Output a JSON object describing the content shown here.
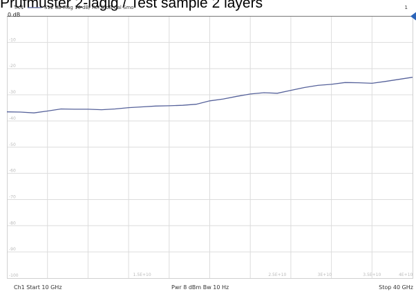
{
  "title": "Prüfmuster 2-lagig / Test sample 2 layers",
  "trace_header": {
    "trace_name": "Trc1",
    "measurement": "S12  dB Mag  10 dB/ Ref 0 dB  Cal Smo",
    "channel_number": "1"
  },
  "ref_label": "0 dB",
  "footer": {
    "start": "Ch1  Start  10 GHz",
    "center": "Pwr  8 dBm  Bw  10 Hz",
    "stop": "Stop  40 GHz"
  },
  "colors": {
    "trace": "#55619a",
    "grid": "#dcdcdc",
    "marker": "#2b64b9"
  },
  "chart_data": {
    "type": "line",
    "title": "Prüfmuster 2-lagig / Test sample 2 layers",
    "xlabel": "",
    "ylabel": "",
    "xlim": [
      10,
      40
    ],
    "ylim": [
      -100,
      0
    ],
    "grid": true,
    "x_tick_labels": [
      {
        "value": 20,
        "label": "1.5E+10"
      },
      {
        "value": 30,
        "label": "2.5E+10"
      },
      {
        "value": 33.5,
        "label": "3E+10"
      },
      {
        "value": 37,
        "label": "3.5E+10"
      },
      {
        "value": 39.5,
        "label": "4E+10"
      }
    ],
    "y_tick_labels": [
      {
        "value": -10,
        "label": "-10"
      },
      {
        "value": -20,
        "label": "-20"
      },
      {
        "value": -30,
        "label": "-30"
      },
      {
        "value": -40,
        "label": "-40"
      },
      {
        "value": -50,
        "label": "-50"
      },
      {
        "value": -60,
        "label": "-60"
      },
      {
        "value": -70,
        "label": "-70"
      },
      {
        "value": -80,
        "label": "-80"
      },
      {
        "value": -90,
        "label": "-90"
      },
      {
        "value": -100,
        "label": "-100"
      }
    ],
    "series": [
      {
        "x": [
          10,
          11,
          12,
          13,
          14,
          15,
          16,
          17,
          18,
          19,
          20,
          21,
          22,
          23,
          24,
          25,
          26,
          27,
          28,
          29,
          30,
          31,
          32,
          33,
          34,
          35,
          36,
          37,
          38,
          39,
          40
        ],
        "y": [
          -36.5,
          -36.6,
          -36.9,
          -36.2,
          -35.4,
          -35.5,
          -35.5,
          -35.7,
          -35.4,
          -34.9,
          -34.6,
          -34.3,
          -34.2,
          -34.0,
          -33.6,
          -32.3,
          -31.6,
          -30.6,
          -29.7,
          -29.2,
          -29.4,
          -28.3,
          -27.2,
          -26.4,
          -26.0,
          -25.3,
          -25.4,
          -25.6,
          -24.9,
          -24.1,
          -23.3
        ]
      }
    ]
  }
}
